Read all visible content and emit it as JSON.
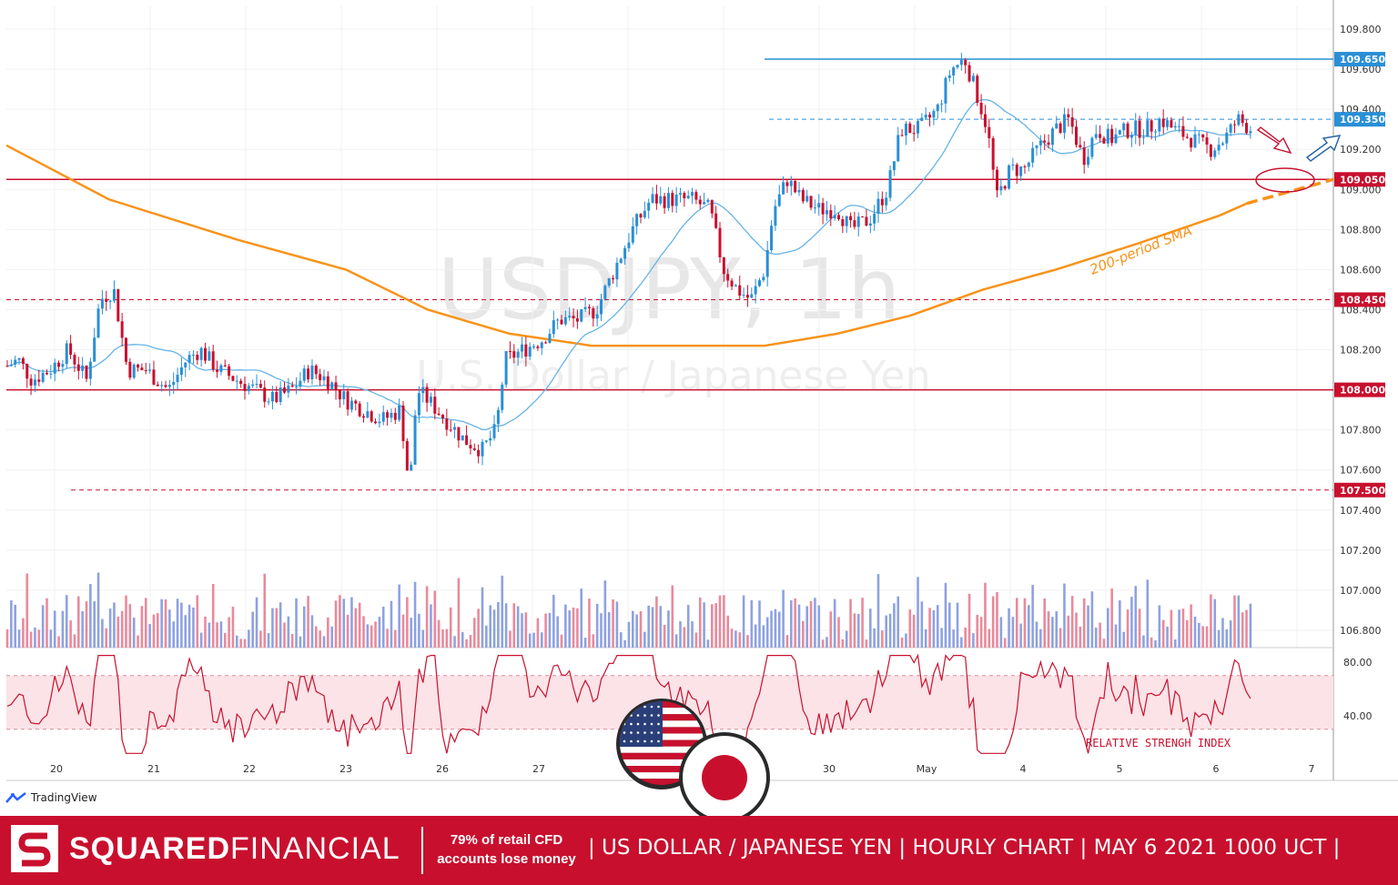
{
  "chart_data": {
    "type": "candlestick",
    "title": "USDJPY, 1h",
    "subtitle": "U.S. Dollar / Japanese Yen",
    "y_ticks": [
      "109.800",
      "109.600",
      "109.400",
      "109.200",
      "109.000",
      "108.800",
      "108.600",
      "108.400",
      "108.200",
      "108.000",
      "107.800",
      "107.600",
      "107.400",
      "107.200",
      "107.000",
      "106.800"
    ],
    "ylim": [
      106.7,
      109.9
    ],
    "x_ticks": [
      "20",
      "21",
      "22",
      "23",
      "26",
      "27",
      "30",
      "May",
      "4",
      "5",
      "6",
      "7"
    ],
    "levels": [
      {
        "label": "109.650",
        "value": 109.65,
        "style": "solid",
        "color": "#2a8fd6"
      },
      {
        "label": "109.350",
        "value": 109.35,
        "style": "dashed",
        "color": "#2a8fd6"
      },
      {
        "label": "109.050",
        "value": 109.05,
        "style": "solid",
        "color": "#c8102e"
      },
      {
        "label": "108.450",
        "value": 108.45,
        "style": "dashed",
        "color": "#c8102e"
      },
      {
        "label": "108.000",
        "value": 108.0,
        "style": "solid",
        "color": "#c8102e"
      },
      {
        "label": "107.500",
        "value": 107.5,
        "style": "dashed",
        "color": "#c8102e"
      }
    ],
    "price_path": [
      [
        0,
        108.1
      ],
      [
        20,
        108.15
      ],
      [
        35,
        108.05
      ],
      [
        55,
        108.1
      ],
      [
        75,
        108.2
      ],
      [
        95,
        108.05
      ],
      [
        110,
        108.45
      ],
      [
        125,
        108.5
      ],
      [
        140,
        108.1
      ],
      [
        160,
        108.1
      ],
      [
        185,
        108.0
      ],
      [
        205,
        108.15
      ],
      [
        220,
        108.2
      ],
      [
        240,
        108.1
      ],
      [
        260,
        108.05
      ],
      [
        280,
        108.0
      ],
      [
        300,
        107.95
      ],
      [
        320,
        108.0
      ],
      [
        340,
        108.1
      ],
      [
        360,
        108.05
      ],
      [
        380,
        107.95
      ],
      [
        400,
        107.9
      ],
      [
        420,
        107.85
      ],
      [
        440,
        107.9
      ],
      [
        450,
        107.5
      ],
      [
        458,
        108.0
      ],
      [
        470,
        107.95
      ],
      [
        490,
        107.85
      ],
      [
        510,
        107.75
      ],
      [
        530,
        107.7
      ],
      [
        545,
        107.8
      ],
      [
        555,
        108.15
      ],
      [
        575,
        108.2
      ],
      [
        595,
        108.25
      ],
      [
        615,
        108.35
      ],
      [
        635,
        108.35
      ],
      [
        655,
        108.4
      ],
      [
        675,
        108.6
      ],
      [
        695,
        108.8
      ],
      [
        715,
        108.95
      ],
      [
        735,
        108.95
      ],
      [
        760,
        108.95
      ],
      [
        780,
        108.9
      ],
      [
        795,
        108.6
      ],
      [
        810,
        108.5
      ],
      [
        825,
        108.45
      ],
      [
        840,
        108.6
      ],
      [
        850,
        108.9
      ],
      [
        865,
        109.05
      ],
      [
        880,
        108.95
      ],
      [
        900,
        108.9
      ],
      [
        920,
        108.9
      ],
      [
        935,
        108.8
      ],
      [
        955,
        108.85
      ],
      [
        975,
        109.0
      ],
      [
        990,
        109.3
      ],
      [
        1010,
        109.3
      ],
      [
        1030,
        109.4
      ],
      [
        1045,
        109.6
      ],
      [
        1060,
        109.65
      ],
      [
        1075,
        109.45
      ],
      [
        1085,
        109.3
      ],
      [
        1095,
        108.95
      ],
      [
        1110,
        109.1
      ],
      [
        1125,
        109.1
      ],
      [
        1140,
        109.2
      ],
      [
        1160,
        109.3
      ],
      [
        1175,
        109.35
      ],
      [
        1190,
        109.15
      ],
      [
        1205,
        109.3
      ],
      [
        1220,
        109.25
      ],
      [
        1240,
        109.3
      ],
      [
        1260,
        109.3
      ],
      [
        1275,
        109.35
      ],
      [
        1290,
        109.3
      ],
      [
        1310,
        109.25
      ],
      [
        1330,
        109.2
      ],
      [
        1345,
        109.25
      ],
      [
        1360,
        109.35
      ],
      [
        1375,
        109.3
      ]
    ],
    "sma_label": "200-period SMA",
    "rsi_label": "RELATIVE STRENGH INDEX",
    "rsi_ticks": [
      "80.00",
      "40.00"
    ],
    "rsi_band": [
      30,
      70
    ],
    "colors": {
      "up": "#2a8fd6",
      "down": "#c8102e",
      "sma200": "#f7931a",
      "ma_short": "#66b4e6",
      "volume_up": "#8ea2e0",
      "volume_down": "#e98a9c"
    }
  },
  "branding": {
    "tradingview": "TradingView",
    "company_first": "SQUARED",
    "company_second": "FINANCIAL",
    "risk_line1": "79% of retail CFD",
    "risk_line2": "accounts lose money",
    "headline": "| US DOLLAR / JAPANESE YEN | HOURLY CHART | MAY 6   2021  1000 UCT |"
  }
}
